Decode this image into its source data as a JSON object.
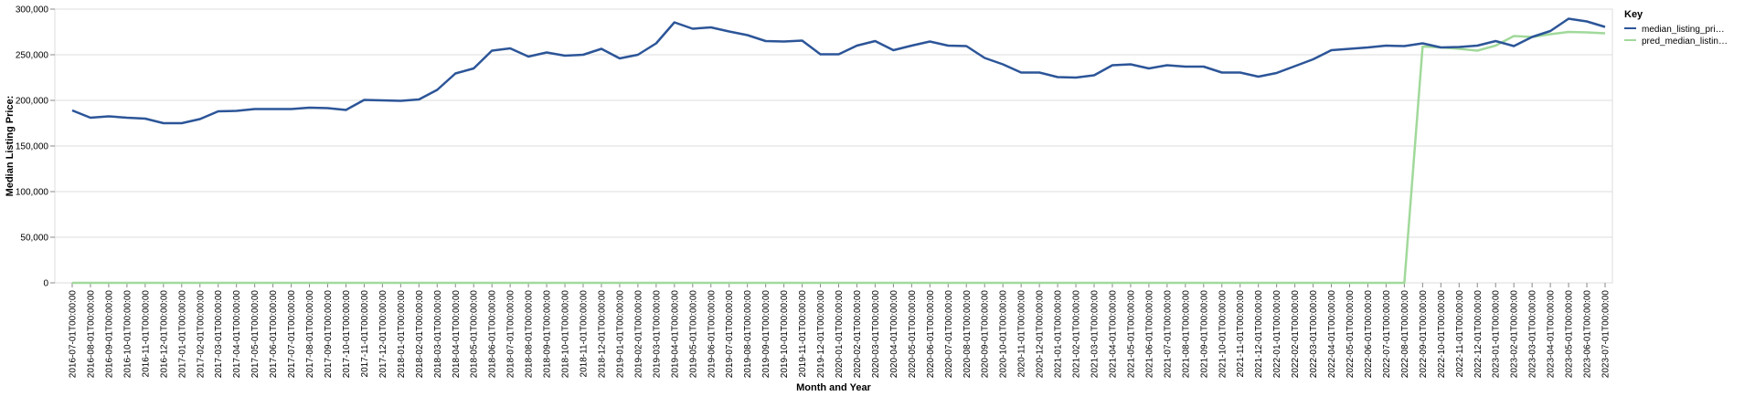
{
  "chart_data": {
    "type": "line",
    "xlabel": "Month and Year",
    "ylabel": "Median Listing Price:",
    "ylim": [
      0,
      300000
    ],
    "yticks": [
      "0",
      "50,000",
      "100,000",
      "150,000",
      "200,000",
      "250,000",
      "300,000"
    ],
    "grid": true,
    "legend": {
      "title": "Key",
      "placement": "right"
    },
    "x": [
      "2016-07-01T00:00:00",
      "2016-08-01T00:00:00",
      "2016-09-01T00:00:00",
      "2016-10-01T00:00:00",
      "2016-11-01T00:00:00",
      "2016-12-01T00:00:00",
      "2017-01-01T00:00:00",
      "2017-02-01T00:00:00",
      "2017-03-01T00:00:00",
      "2017-04-01T00:00:00",
      "2017-05-01T00:00:00",
      "2017-06-01T00:00:00",
      "2017-07-01T00:00:00",
      "2017-08-01T00:00:00",
      "2017-09-01T00:00:00",
      "2017-10-01T00:00:00",
      "2017-11-01T00:00:00",
      "2017-12-01T00:00:00",
      "2018-01-01T00:00:00",
      "2018-02-01T00:00:00",
      "2018-03-01T00:00:00",
      "2018-04-01T00:00:00",
      "2018-05-01T00:00:00",
      "2018-06-01T00:00:00",
      "2018-07-01T00:00:00",
      "2018-08-01T00:00:00",
      "2018-09-01T00:00:00",
      "2018-10-01T00:00:00",
      "2018-11-01T00:00:00",
      "2018-12-01T00:00:00",
      "2019-01-01T00:00:00",
      "2019-02-01T00:00:00",
      "2019-03-01T00:00:00",
      "2019-04-01T00:00:00",
      "2019-05-01T00:00:00",
      "2019-06-01T00:00:00",
      "2019-07-01T00:00:00",
      "2019-08-01T00:00:00",
      "2019-09-01T00:00:00",
      "2019-10-01T00:00:00",
      "2019-11-01T00:00:00",
      "2019-12-01T00:00:00",
      "2020-01-01T00:00:00",
      "2020-02-01T00:00:00",
      "2020-03-01T00:00:00",
      "2020-04-01T00:00:00",
      "2020-05-01T00:00:00",
      "2020-06-01T00:00:00",
      "2020-07-01T00:00:00",
      "2020-08-01T00:00:00",
      "2020-09-01T00:00:00",
      "2020-10-01T00:00:00",
      "2020-11-01T00:00:00",
      "2020-12-01T00:00:00",
      "2021-01-01T00:00:00",
      "2021-02-01T00:00:00",
      "2021-03-01T00:00:00",
      "2021-04-01T00:00:00",
      "2021-05-01T00:00:00",
      "2021-06-01T00:00:00",
      "2021-07-01T00:00:00",
      "2021-08-01T00:00:00",
      "2021-09-01T00:00:00",
      "2021-10-01T00:00:00",
      "2021-11-01T00:00:00",
      "2021-12-01T00:00:00",
      "2022-01-01T00:00:00",
      "2022-02-01T00:00:00",
      "2022-03-01T00:00:00",
      "2022-04-01T00:00:00",
      "2022-05-01T00:00:00",
      "2022-06-01T00:00:00",
      "2022-07-01T00:00:00",
      "2022-08-01T00:00:00",
      "2022-09-01T00:00:00",
      "2022-10-01T00:00:00",
      "2022-11-01T00:00:00",
      "2022-12-01T00:00:00",
      "2023-01-01T00:00:00",
      "2023-02-01T00:00:00",
      "2023-03-01T00:00:00",
      "2023-04-01T00:00:00",
      "2023-05-01T00:00:00",
      "2023-06-01T00:00:00",
      "2023-07-01T00:00:00"
    ],
    "series": [
      {
        "name": "median_listing_pri…",
        "color": "#2c5598",
        "values": [
          189000,
          181000,
          182500,
          181000,
          180000,
          175000,
          175000,
          179500,
          188000,
          188500,
          190500,
          190500,
          190500,
          192000,
          191500,
          189500,
          200500,
          200000,
          199500,
          201000,
          211500,
          229500,
          235000,
          254500,
          257000,
          248000,
          252500,
          249000,
          250000,
          256500,
          246000,
          250000,
          262500,
          285500,
          278500,
          280000,
          275500,
          271500,
          265000,
          264500,
          265500,
          250500,
          250500,
          260000,
          265000,
          255000,
          260000,
          264500,
          260000,
          259500,
          246500,
          239500,
          230500,
          230500,
          225500,
          225000,
          227500,
          238500,
          239500,
          235000,
          238500,
          237000,
          237000,
          230500,
          230500,
          226000,
          230000,
          237500,
          245000,
          255000,
          256500,
          258000,
          260000,
          259500,
          262500,
          258000,
          258500,
          260000,
          265000,
          259500,
          269500,
          276000,
          289500,
          286500,
          280500
        ]
      },
      {
        "name": "pred_median_listin…",
        "color": "#a1d99b",
        "values": [
          0,
          0,
          0,
          0,
          0,
          0,
          0,
          0,
          0,
          0,
          0,
          0,
          0,
          0,
          0,
          0,
          0,
          0,
          0,
          0,
          0,
          0,
          0,
          0,
          0,
          0,
          0,
          0,
          0,
          0,
          0,
          0,
          0,
          0,
          0,
          0,
          0,
          0,
          0,
          0,
          0,
          0,
          0,
          0,
          0,
          0,
          0,
          0,
          0,
          0,
          0,
          0,
          0,
          0,
          0,
          0,
          0,
          0,
          0,
          0,
          0,
          0,
          0,
          0,
          0,
          0,
          0,
          0,
          0,
          0,
          0,
          0,
          0,
          0,
          259000,
          258000,
          256500,
          254500,
          260000,
          270500,
          269500,
          272500,
          275000,
          274500,
          273500
        ]
      }
    ]
  }
}
